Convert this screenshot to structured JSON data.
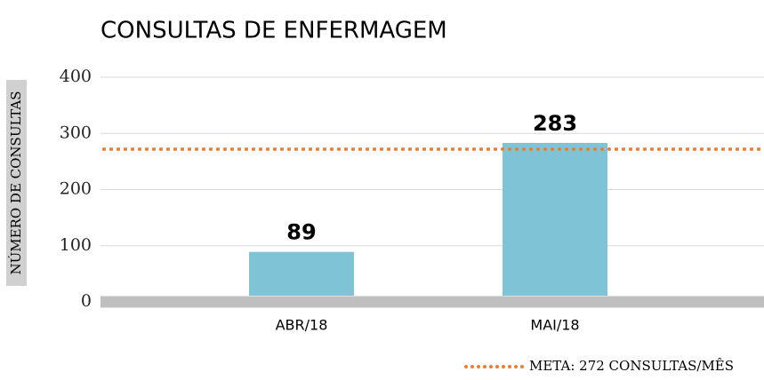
{
  "chart_data": {
    "type": "bar",
    "title": "CONSULTAS DE ENFERMAGEM",
    "y_label": "NÚMERO DE CONSULTAS",
    "categories": [
      "ABR/18",
      "MAI/18"
    ],
    "values": [
      89,
      283
    ],
    "color": "#7fc4d6",
    "ylim": [
      0,
      400
    ],
    "yticks": [
      0,
      100,
      200,
      300,
      400
    ],
    "grid": true,
    "target": {
      "name": "META: 272 CONSULTAS/MÊS",
      "value": 272,
      "color": "#ed7d31"
    }
  }
}
